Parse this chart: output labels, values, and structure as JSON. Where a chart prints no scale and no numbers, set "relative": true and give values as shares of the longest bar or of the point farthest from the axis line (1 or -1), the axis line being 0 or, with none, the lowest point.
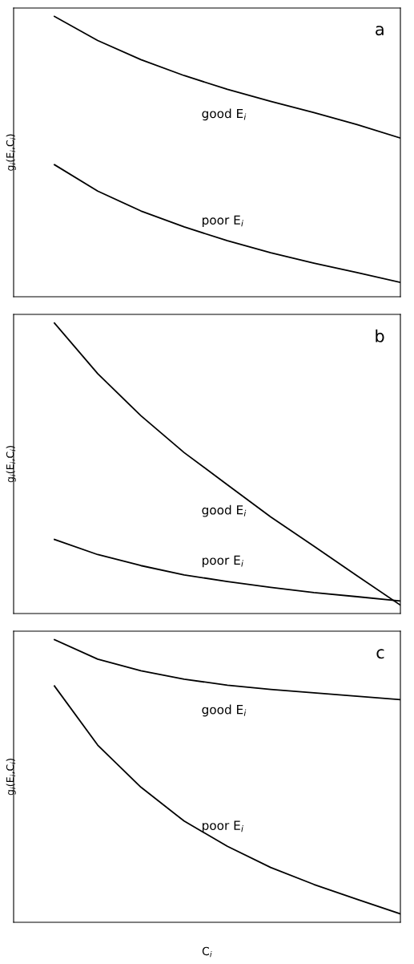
{
  "chart_data": [
    {
      "type": "line",
      "relative": true,
      "ylabel": "g$_{i}$(E$_{i}$,C$_{i}$)",
      "annotations": [
        "a"
      ],
      "categories": [
        null,
        null,
        null,
        null,
        null,
        null,
        null,
        null,
        null
      ],
      "series": [
        {
          "name": "good E$_{i}$",
          "color": "#000000",
          "values": [
            1.0,
            0.914,
            0.846,
            0.789,
            0.74,
            0.697,
            0.657,
            0.614,
            0.566
          ]
        },
        {
          "name": "poor E$_{i}$",
          "color": "#000000",
          "values": [
            0.471,
            0.377,
            0.306,
            0.249,
            0.2,
            0.157,
            0.12,
            0.086,
            0.051
          ]
        }
      ]
    },
    {
      "type": "line",
      "relative": true,
      "ylabel": "g$_{i}$(E$_{i}$,C$_{i}$)",
      "annotations": [
        "b"
      ],
      "categories": [
        null,
        null,
        null,
        null,
        null,
        null,
        null,
        null,
        null
      ],
      "series": [
        {
          "name": "good E$_{i}$",
          "color": "#000000",
          "values": [
            1.0,
            0.826,
            0.681,
            0.554,
            0.443,
            0.333,
            0.232,
            0.13,
            0.029
          ]
        },
        {
          "name": "poor E$_{i}$",
          "color": "#000000",
          "values": [
            0.255,
            0.203,
            0.165,
            0.133,
            0.11,
            0.09,
            0.072,
            0.058,
            0.043
          ]
        }
      ]
    },
    {
      "type": "line",
      "relative": true,
      "ylabel": "g$_{i}$(E$_{i}$,C$_{i}$)",
      "xlabel": "C$_{i}$",
      "annotations": [
        "c"
      ],
      "categories": [
        null,
        null,
        null,
        null,
        null,
        null,
        null,
        null,
        null
      ],
      "series": [
        {
          "name": "good E$_{i}$",
          "color": "#000000",
          "values": [
            1.0,
            0.931,
            0.89,
            0.86,
            0.839,
            0.824,
            0.812,
            0.8,
            0.788
          ]
        },
        {
          "name": "poor E$_{i}$",
          "color": "#000000",
          "values": [
            0.836,
            0.627,
            0.478,
            0.358,
            0.269,
            0.194,
            0.134,
            0.081,
            0.03
          ]
        }
      ]
    }
  ]
}
